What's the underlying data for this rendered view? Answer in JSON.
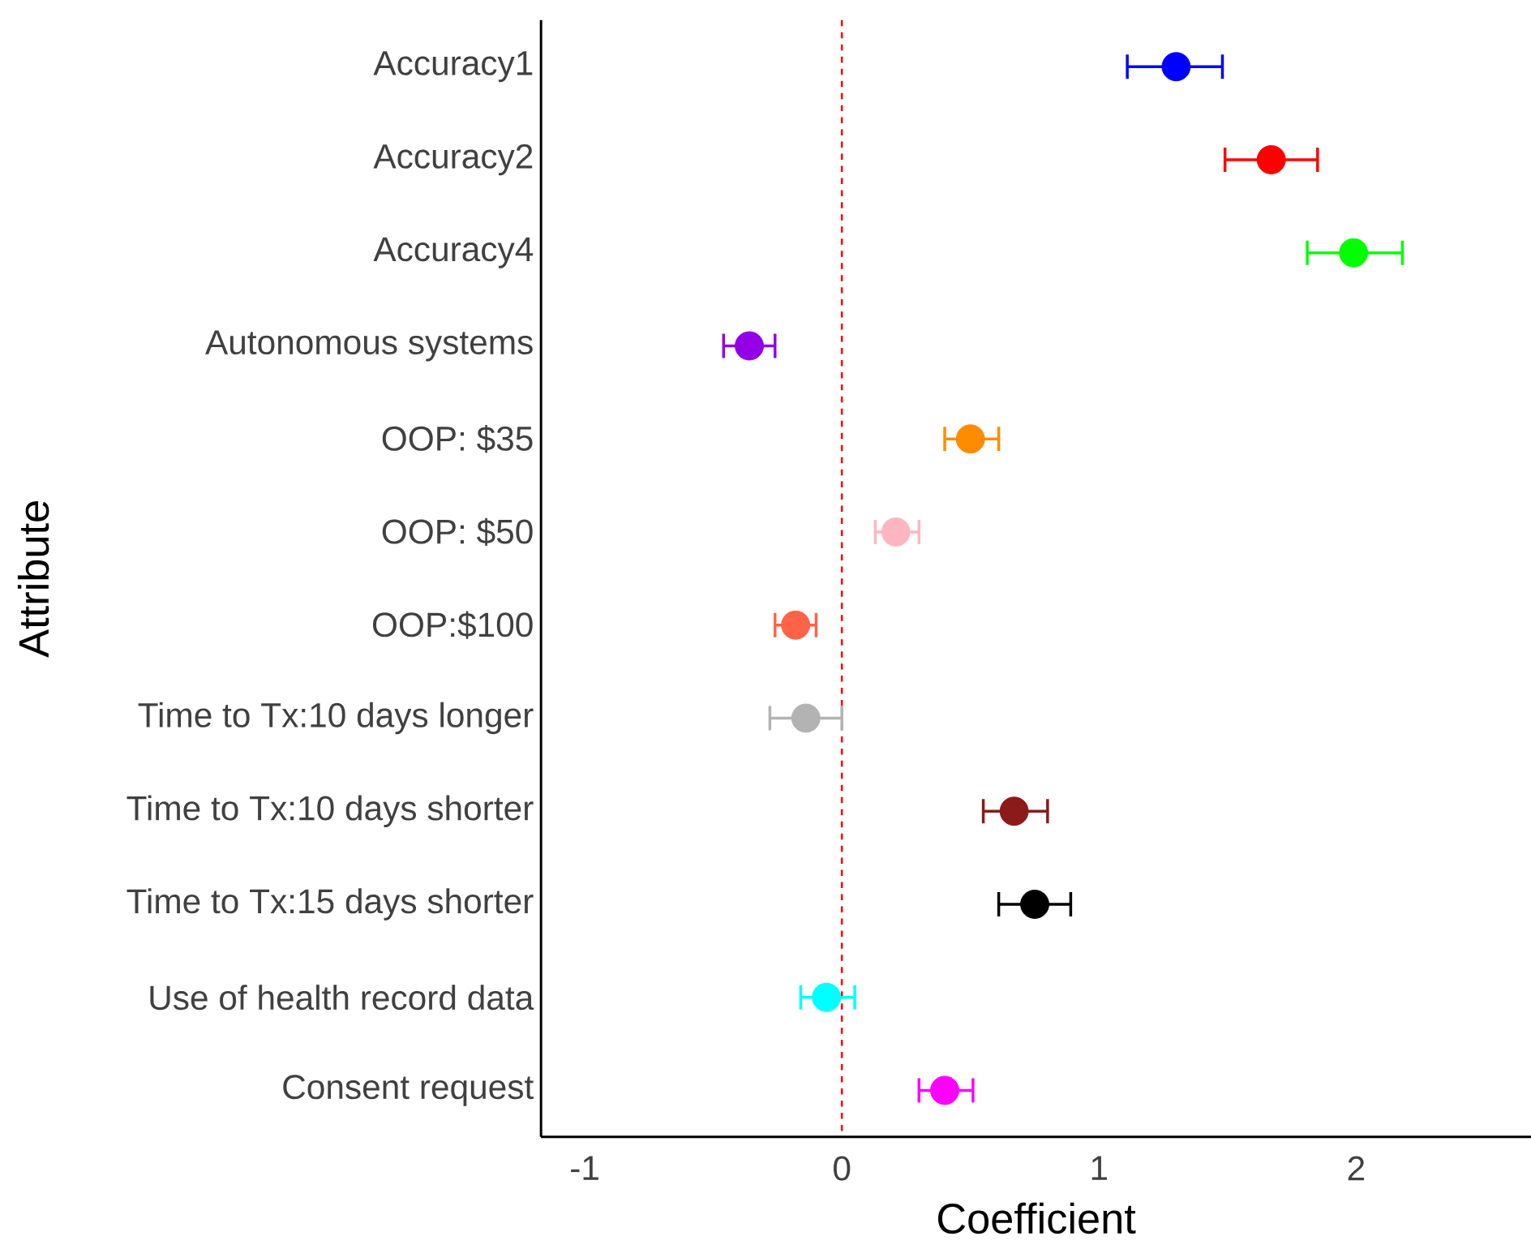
{
  "chart_data": {
    "type": "scatter",
    "orientation": "horizontal",
    "xlabel": "Coefficient",
    "ylabel": "Attribute",
    "categories": [
      "Accuracy1",
      "Accuracy2",
      "Accuracy4",
      "Autonomous systems",
      "OOP: $35",
      "OOP: $50",
      "OOP:$100",
      "Time to Tx:10 days longer",
      "Time to Tx:10 days shorter",
      "Time to Tx:15 days shorter",
      "Use of health record data",
      "Consent request"
    ],
    "values": [
      1.3,
      1.67,
      1.99,
      -0.36,
      0.5,
      0.21,
      -0.18,
      -0.14,
      0.67,
      0.75,
      -0.06,
      0.4
    ],
    "errors": [
      [
        1.11,
        1.48
      ],
      [
        1.49,
        1.85
      ],
      [
        1.81,
        2.18
      ],
      [
        -0.46,
        -0.26
      ],
      [
        0.4,
        0.61
      ],
      [
        0.13,
        0.3
      ],
      [
        -0.26,
        -0.1
      ],
      [
        -0.28,
        0.0
      ],
      [
        0.55,
        0.8
      ],
      [
        0.61,
        0.89
      ],
      [
        -0.16,
        0.05
      ],
      [
        0.3,
        0.51
      ]
    ],
    "colors": [
      "#0000ff",
      "#ff0000",
      "#00ff00",
      "#9400e6",
      "#ff8c00",
      "#ffb6c1",
      "#ff6347",
      "#b3b3b3",
      "#8b1a1a",
      "#000000",
      "#00ffff",
      "#ff00ff"
    ],
    "xlim": [
      -1.17,
      2.68
    ],
    "xticks": [
      -1,
      0,
      1,
      2
    ],
    "ref_lines": [
      {
        "axis": "x",
        "value": 0,
        "color": "#ff0000",
        "line_style": "dashed"
      }
    ],
    "grid": false
  }
}
